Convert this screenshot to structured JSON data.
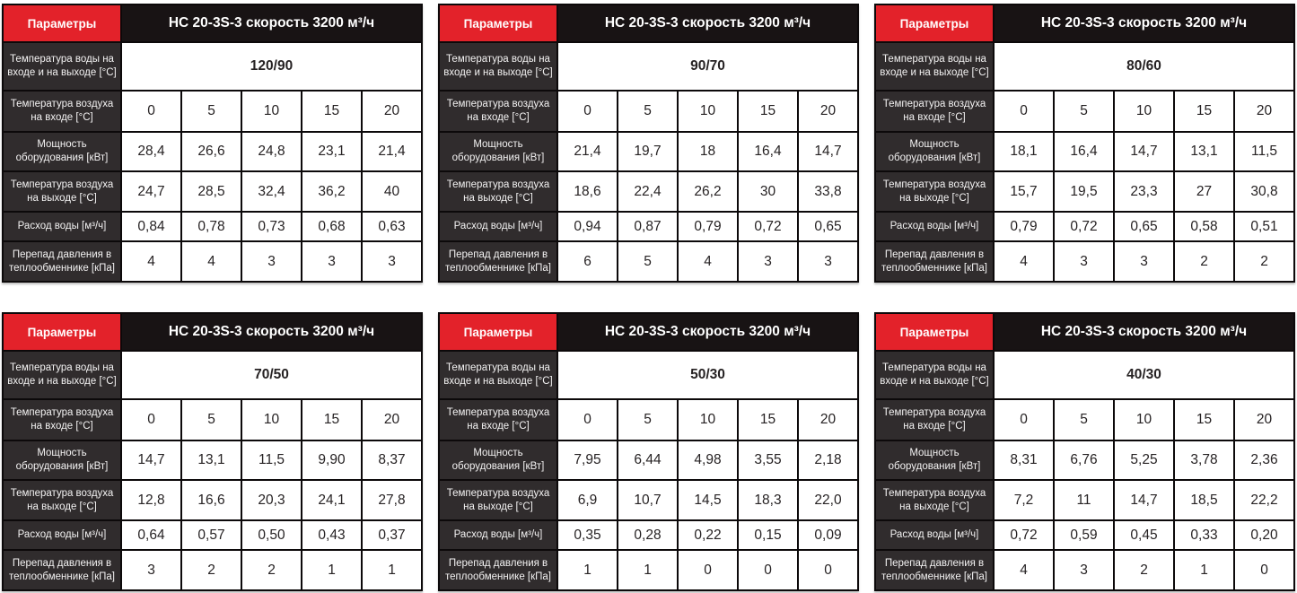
{
  "shared": {
    "param_header": "Параметры",
    "model_header": "НС 20-3S-3 скорость 3200 м³/ч",
    "labels": {
      "water_temp": "Температура воды на входе и на выходе [°С]",
      "air_in": "Температура воздуха на входе [°С]",
      "power": "Мощность оборудования [кВт]",
      "air_out": "Температура воздуха на выходе [°С]",
      "water_flow": "Расход воды [м³/ч]",
      "pressure_drop": "Перепад давления в теплообменнике [кПа]"
    }
  },
  "colors": {
    "accent_red": "#e3222a",
    "header_black": "#181314",
    "label_dark": "#302c2d",
    "grid_line": "#0c090a"
  },
  "tables": [
    {
      "water_temp": "120/90",
      "air_in": [
        "0",
        "5",
        "10",
        "15",
        "20"
      ],
      "power": [
        "28,4",
        "26,6",
        "24,8",
        "23,1",
        "21,4"
      ],
      "air_out": [
        "24,7",
        "28,5",
        "32,4",
        "36,2",
        "40"
      ],
      "water_flow": [
        "0,84",
        "0,78",
        "0,73",
        "0,68",
        "0,63"
      ],
      "pressure_drop": [
        "4",
        "4",
        "3",
        "3",
        "3"
      ]
    },
    {
      "water_temp": "90/70",
      "air_in": [
        "0",
        "5",
        "10",
        "15",
        "20"
      ],
      "power": [
        "21,4",
        "19,7",
        "18",
        "16,4",
        "14,7"
      ],
      "air_out": [
        "18,6",
        "22,4",
        "26,2",
        "30",
        "33,8"
      ],
      "water_flow": [
        "0,94",
        "0,87",
        "0,79",
        "0,72",
        "0,65"
      ],
      "pressure_drop": [
        "6",
        "5",
        "4",
        "3",
        "3"
      ]
    },
    {
      "water_temp": "80/60",
      "air_in": [
        "0",
        "5",
        "10",
        "15",
        "20"
      ],
      "power": [
        "18,1",
        "16,4",
        "14,7",
        "13,1",
        "11,5"
      ],
      "air_out": [
        "15,7",
        "19,5",
        "23,3",
        "27",
        "30,8"
      ],
      "water_flow": [
        "0,79",
        "0,72",
        "0,65",
        "0,58",
        "0,51"
      ],
      "pressure_drop": [
        "4",
        "3",
        "3",
        "2",
        "2"
      ]
    },
    {
      "water_temp": "70/50",
      "air_in": [
        "0",
        "5",
        "10",
        "15",
        "20"
      ],
      "power": [
        "14,7",
        "13,1",
        "11,5",
        "9,90",
        "8,37"
      ],
      "air_out": [
        "12,8",
        "16,6",
        "20,3",
        "24,1",
        "27,8"
      ],
      "water_flow": [
        "0,64",
        "0,57",
        "0,50",
        "0,43",
        "0,37"
      ],
      "pressure_drop": [
        "3",
        "2",
        "2",
        "1",
        "1"
      ]
    },
    {
      "water_temp": "50/30",
      "air_in": [
        "0",
        "5",
        "10",
        "15",
        "20"
      ],
      "power": [
        "7,95",
        "6,44",
        "4,98",
        "3,55",
        "2,18"
      ],
      "air_out": [
        "6,9",
        "10,7",
        "14,5",
        "18,3",
        "22,0"
      ],
      "water_flow": [
        "0,35",
        "0,28",
        "0,22",
        "0,15",
        "0,09"
      ],
      "pressure_drop": [
        "1",
        "1",
        "0",
        "0",
        "0"
      ]
    },
    {
      "water_temp": "40/30",
      "air_in": [
        "0",
        "5",
        "10",
        "15",
        "20"
      ],
      "power": [
        "8,31",
        "6,76",
        "5,25",
        "3,78",
        "2,36"
      ],
      "air_out": [
        "7,2",
        "11",
        "14,7",
        "18,5",
        "22,2"
      ],
      "water_flow": [
        "0,72",
        "0,59",
        "0,45",
        "0,33",
        "0,20"
      ],
      "pressure_drop": [
        "4",
        "3",
        "2",
        "1",
        "0"
      ]
    }
  ]
}
